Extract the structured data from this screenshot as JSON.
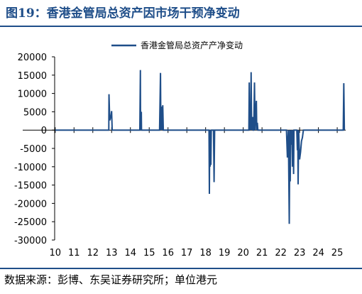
{
  "title": "图19：香港金管局总资产因市场干预净变动",
  "source": "数据来源：彭博、东吴证券研究所；单位港元",
  "chart_data": {
    "type": "line",
    "title": "图19：香港金管局总资产因市场干预净变动",
    "xlabel": "",
    "ylabel": "",
    "x_tick_labels": [
      "10",
      "11",
      "12",
      "13",
      "14",
      "15",
      "16",
      "17",
      "18",
      "19",
      "20",
      "21",
      "22",
      "23",
      "24",
      "25"
    ],
    "y_tick_labels": [
      "20000",
      "15000",
      "10000",
      "5000",
      "0",
      "-5000",
      "-10000",
      "-15000",
      "-20000",
      "-25000",
      "-30000"
    ],
    "xlim": [
      9.97,
      25.45
    ],
    "ylim": [
      -30000,
      20000
    ],
    "grid": false,
    "legend_position": "top-center",
    "series": [
      {
        "name": "香港金管局总资产产净变动",
        "color": "#1f4e89",
        "x": [
          10.0,
          12.85,
          12.86,
          12.9,
          12.91,
          12.97,
          13.0,
          13.03,
          13.04,
          14.5,
          14.53,
          14.54,
          14.58,
          14.59,
          14.62,
          14.65,
          15.55,
          15.6,
          15.62,
          15.65,
          15.7,
          15.72,
          15.75,
          15.78,
          15.8,
          18.18,
          18.2,
          18.22,
          18.24,
          18.26,
          18.28,
          18.3,
          18.32,
          18.42,
          18.45,
          18.48,
          18.5,
          18.52,
          20.3,
          20.32,
          20.35,
          20.37,
          20.4,
          20.42,
          20.45,
          20.48,
          20.5,
          20.53,
          20.56,
          20.6,
          20.63,
          20.65,
          20.68,
          20.7,
          20.72,
          20.75,
          20.78,
          20.8,
          22.3,
          22.35,
          22.4,
          22.45,
          22.48,
          22.5,
          22.53,
          22.56,
          22.6,
          22.62,
          22.65,
          22.68,
          22.7,
          22.72,
          22.85,
          22.88,
          22.9,
          22.92,
          22.95,
          23.0,
          23.05,
          23.1,
          23.15,
          23.2,
          23.25,
          25.32,
          25.35,
          25.38
        ],
        "y": [
          0,
          0,
          9800,
          2800,
          2800,
          4000,
          5200,
          0,
          0,
          0,
          16400,
          0,
          5000,
          0,
          0,
          0,
          0,
          15600,
          0,
          6400,
          0,
          6800,
          0,
          0,
          0,
          0,
          -17400,
          0,
          -10000,
          0,
          -9500,
          0,
          0,
          0,
          -14200,
          0,
          0,
          0,
          0,
          13000,
          0,
          3800,
          0,
          15800,
          0,
          2400,
          3600,
          0,
          0,
          13000,
          0,
          2800,
          6600,
          8000,
          0,
          2000,
          0,
          0,
          0,
          -7500,
          0,
          -25600,
          0,
          -14000,
          0,
          -4000,
          0,
          -10000,
          0,
          -12000,
          0,
          0,
          0,
          -5500,
          0,
          -14800,
          0,
          -8000,
          -6000,
          -3000,
          -2000,
          0,
          0,
          0,
          12800,
          0
        ]
      }
    ]
  }
}
